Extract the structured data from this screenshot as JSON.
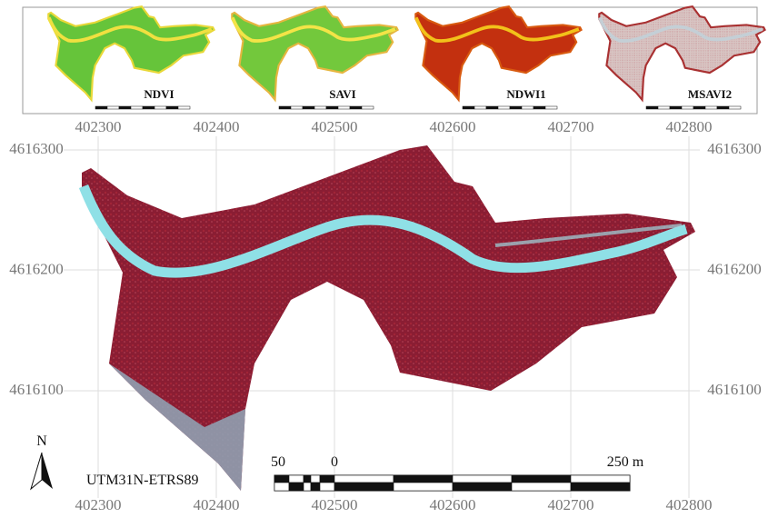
{
  "insets": [
    {
      "label": "NDVI"
    },
    {
      "label": "SAVI"
    },
    {
      "label": "NDWI1"
    },
    {
      "label": "MSAVI2"
    }
  ],
  "map": {
    "x_labels": [
      "402300",
      "402400",
      "402500",
      "402600",
      "402700",
      "402800"
    ],
    "y_labels": [
      "4616300",
      "4616200",
      "4616100"
    ],
    "north": "N",
    "crs": "UTM31N-ETRS89",
    "scale_bar": {
      "left": "50",
      "zero": "0",
      "right": "250 m"
    }
  }
}
